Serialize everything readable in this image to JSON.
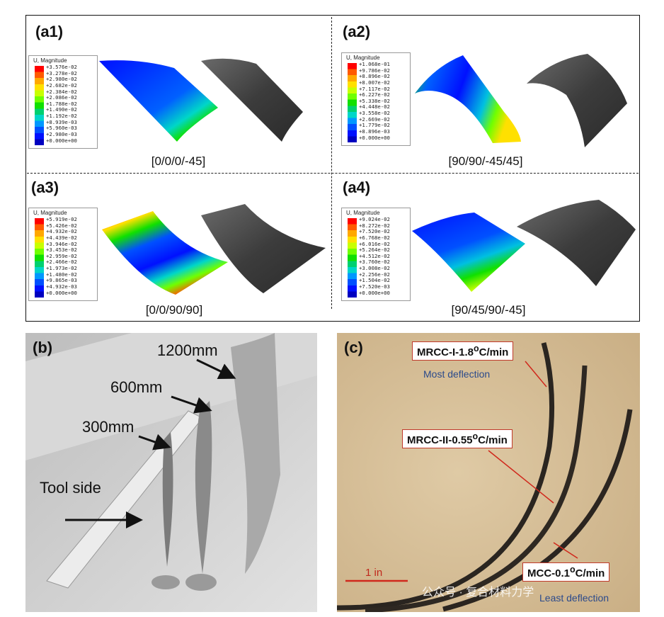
{
  "panels": [
    {
      "label": "(a1)",
      "layup": "[0/0/0/-45]",
      "legend_title": "U, Magnitude",
      "values": [
        "+3.576e-02",
        "+3.278e-02",
        "+2.980e-02",
        "+2.682e-02",
        "+2.384e-02",
        "+2.086e-02",
        "+1.788e-02",
        "+1.490e-02",
        "+1.192e-02",
        "+8.939e-03",
        "+5.960e-03",
        "+2.980e-03",
        "+0.000e+00"
      ]
    },
    {
      "label": "(a2)",
      "layup": "[90/90/-45/45]",
      "legend_title": "U, Magnitude",
      "values": [
        "+1.068e-01",
        "+9.786e-02",
        "+8.896e-02",
        "+8.007e-02",
        "+7.117e-02",
        "+6.227e-02",
        "+5.338e-02",
        "+4.448e-02",
        "+3.558e-02",
        "+2.669e-02",
        "+1.779e-02",
        "+8.896e-03",
        "+0.000e+00"
      ]
    },
    {
      "label": "(a3)",
      "layup": "[0/0/90/90]",
      "legend_title": "U, Magnitude",
      "values": [
        "+5.919e-02",
        "+5.426e-02",
        "+4.932e-02",
        "+4.439e-02",
        "+3.946e-02",
        "+3.453e-02",
        "+2.959e-02",
        "+2.466e-02",
        "+1.973e-02",
        "+1.480e-02",
        "+9.865e-03",
        "+4.932e-03",
        "+0.000e+00"
      ]
    },
    {
      "label": "(a4)",
      "layup": "[90/45/90/-45]",
      "legend_title": "U, Magnitude",
      "values": [
        "+9.024e-02",
        "+8.272e-02",
        "+7.520e-02",
        "+6.768e-02",
        "+6.016e-02",
        "+5.264e-02",
        "+4.512e-02",
        "+3.760e-02",
        "+3.008e-02",
        "+2.256e-02",
        "+1.504e-02",
        "+7.520e-03",
        "+0.000e+00"
      ]
    }
  ],
  "legend_colors": [
    "#ff0000",
    "#ff5a00",
    "#ffa800",
    "#ffe000",
    "#c8ff00",
    "#70ff00",
    "#10e000",
    "#00d070",
    "#00d6c8",
    "#0098ff",
    "#0050ff",
    "#0010ff",
    "#0000c0"
  ],
  "photo_b": {
    "label": "(b)",
    "lengths": [
      "1200mm",
      "600mm",
      "300mm"
    ],
    "tool_side": "Tool side"
  },
  "photo_c": {
    "label": "(c)",
    "callouts": [
      "MRCC-I-1.8",
      "MRCC-II-0.55",
      "MCC-0.1"
    ],
    "unit_suffix": "C/min",
    "degree": "o",
    "most": "Most deflection",
    "least": "Least deflection",
    "scale": "1 in",
    "watermark": "公众号 · 复合材料力学"
  }
}
